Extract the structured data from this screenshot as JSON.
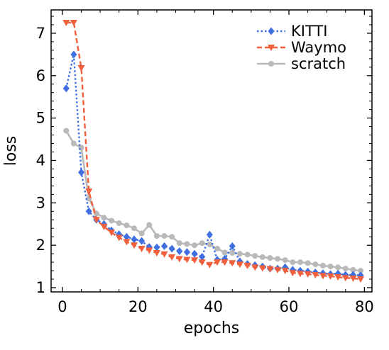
{
  "chart_data": {
    "type": "line",
    "title": "",
    "xlabel": "epochs",
    "ylabel": "loss",
    "xlim": [
      -3,
      82
    ],
    "ylim": [
      0.9,
      7.55
    ],
    "xticks": [
      0,
      20,
      40,
      60,
      80
    ],
    "yticks": [
      1,
      2,
      3,
      4,
      5,
      6,
      7
    ],
    "grid": false,
    "legend_position": "top-right",
    "series": [
      {
        "name": "KITTI",
        "color": "#3f6fe0",
        "line_style": "dotted",
        "marker": "diamond",
        "x": [
          1,
          3,
          5,
          7,
          9,
          11,
          13,
          15,
          17,
          19,
          21,
          23,
          25,
          27,
          29,
          31,
          33,
          35,
          37,
          39,
          41,
          43,
          45,
          47,
          49,
          51,
          53,
          55,
          57,
          59,
          61,
          63,
          65,
          67,
          69,
          71,
          73,
          75,
          77,
          79
        ],
        "y": [
          5.7,
          6.5,
          3.72,
          2.8,
          2.6,
          2.5,
          2.35,
          2.26,
          2.2,
          2.14,
          2.1,
          1.96,
          1.95,
          1.98,
          1.92,
          1.86,
          1.84,
          1.8,
          1.73,
          2.25,
          1.66,
          1.68,
          1.98,
          1.62,
          1.56,
          1.53,
          1.5,
          1.45,
          1.45,
          1.48,
          1.42,
          1.4,
          1.38,
          1.36,
          1.34,
          1.32,
          1.33,
          1.3,
          1.3,
          1.29
        ]
      },
      {
        "name": "Waymo",
        "color": "#f0603c",
        "line_style": "dashed",
        "marker": "triangle-down",
        "x": [
          1,
          3,
          5,
          7,
          9,
          11,
          13,
          15,
          17,
          19,
          21,
          23,
          25,
          27,
          29,
          31,
          33,
          35,
          37,
          39,
          41,
          43,
          45,
          47,
          49,
          51,
          53,
          55,
          57,
          59,
          61,
          63,
          65,
          67,
          69,
          71,
          73,
          75,
          77,
          79
        ],
        "y": [
          7.25,
          7.25,
          6.18,
          3.27,
          2.6,
          2.44,
          2.3,
          2.18,
          2.08,
          2.0,
          1.92,
          1.88,
          1.82,
          1.79,
          1.72,
          1.68,
          1.66,
          1.65,
          1.6,
          1.54,
          1.6,
          1.6,
          1.58,
          1.55,
          1.52,
          1.48,
          1.46,
          1.44,
          1.42,
          1.4,
          1.35,
          1.33,
          1.32,
          1.3,
          1.28,
          1.27,
          1.25,
          1.23,
          1.22,
          1.2
        ]
      },
      {
        "name": "scratch",
        "color": "#b9b9b9",
        "line_style": "solid",
        "marker": "circle",
        "x": [
          1,
          3,
          5,
          7,
          9,
          11,
          13,
          15,
          17,
          19,
          21,
          23,
          25,
          27,
          29,
          31,
          33,
          35,
          37,
          39,
          41,
          43,
          45,
          47,
          49,
          51,
          53,
          55,
          57,
          59,
          61,
          63,
          65,
          67,
          69,
          71,
          73,
          75,
          77,
          79
        ],
        "y": [
          4.7,
          4.4,
          4.3,
          3.1,
          2.75,
          2.65,
          2.58,
          2.52,
          2.47,
          2.4,
          2.28,
          2.48,
          2.22,
          2.22,
          2.2,
          2.05,
          2.03,
          2.0,
          2.05,
          2.02,
          1.92,
          1.83,
          1.82,
          1.8,
          1.78,
          1.75,
          1.72,
          1.7,
          1.68,
          1.65,
          1.6,
          1.6,
          1.58,
          1.55,
          1.52,
          1.5,
          1.48,
          1.45,
          1.42,
          1.4
        ]
      }
    ]
  }
}
